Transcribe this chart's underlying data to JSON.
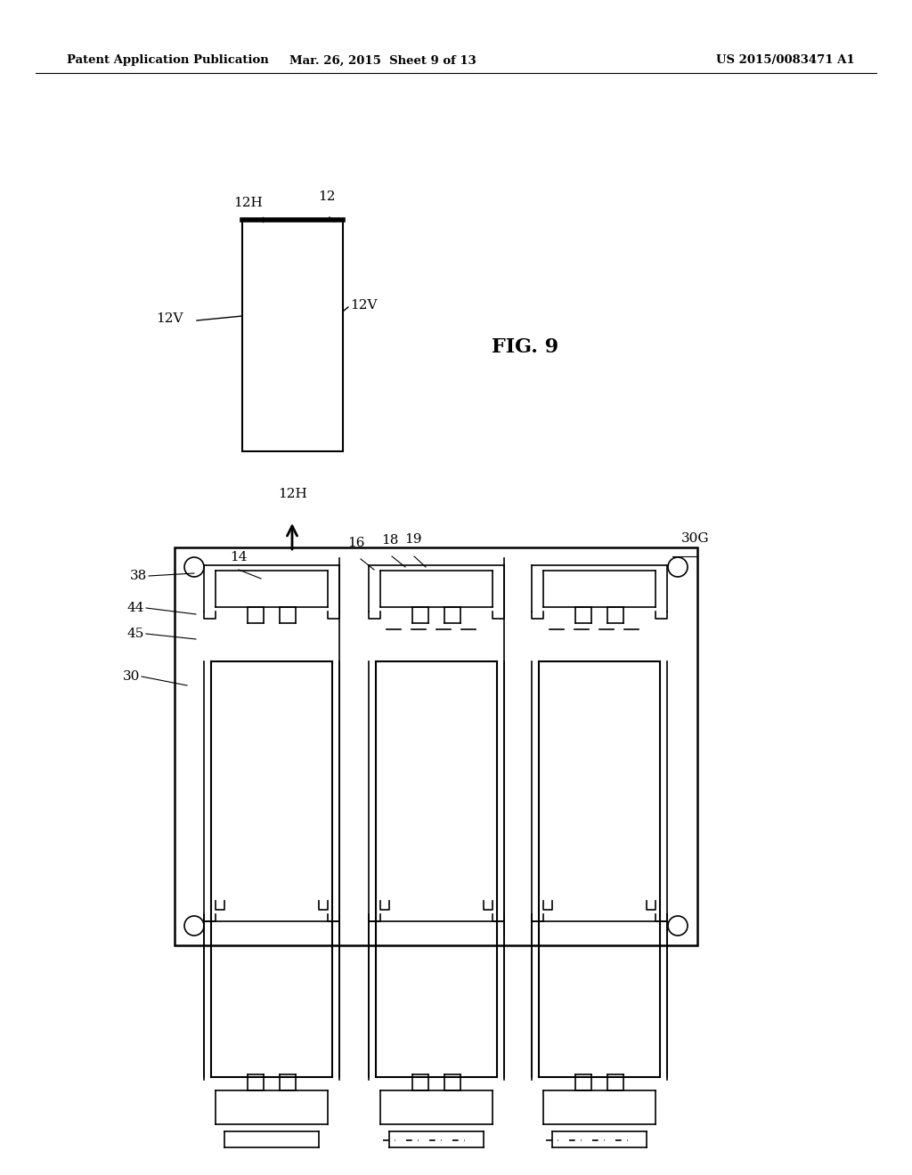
{
  "bg_color": "#ffffff",
  "header_left": "Patent Application Publication",
  "header_mid": "Mar. 26, 2015  Sheet 9 of 13",
  "header_right": "US 2015/0083471 A1",
  "fig_label": "FIG. 9"
}
